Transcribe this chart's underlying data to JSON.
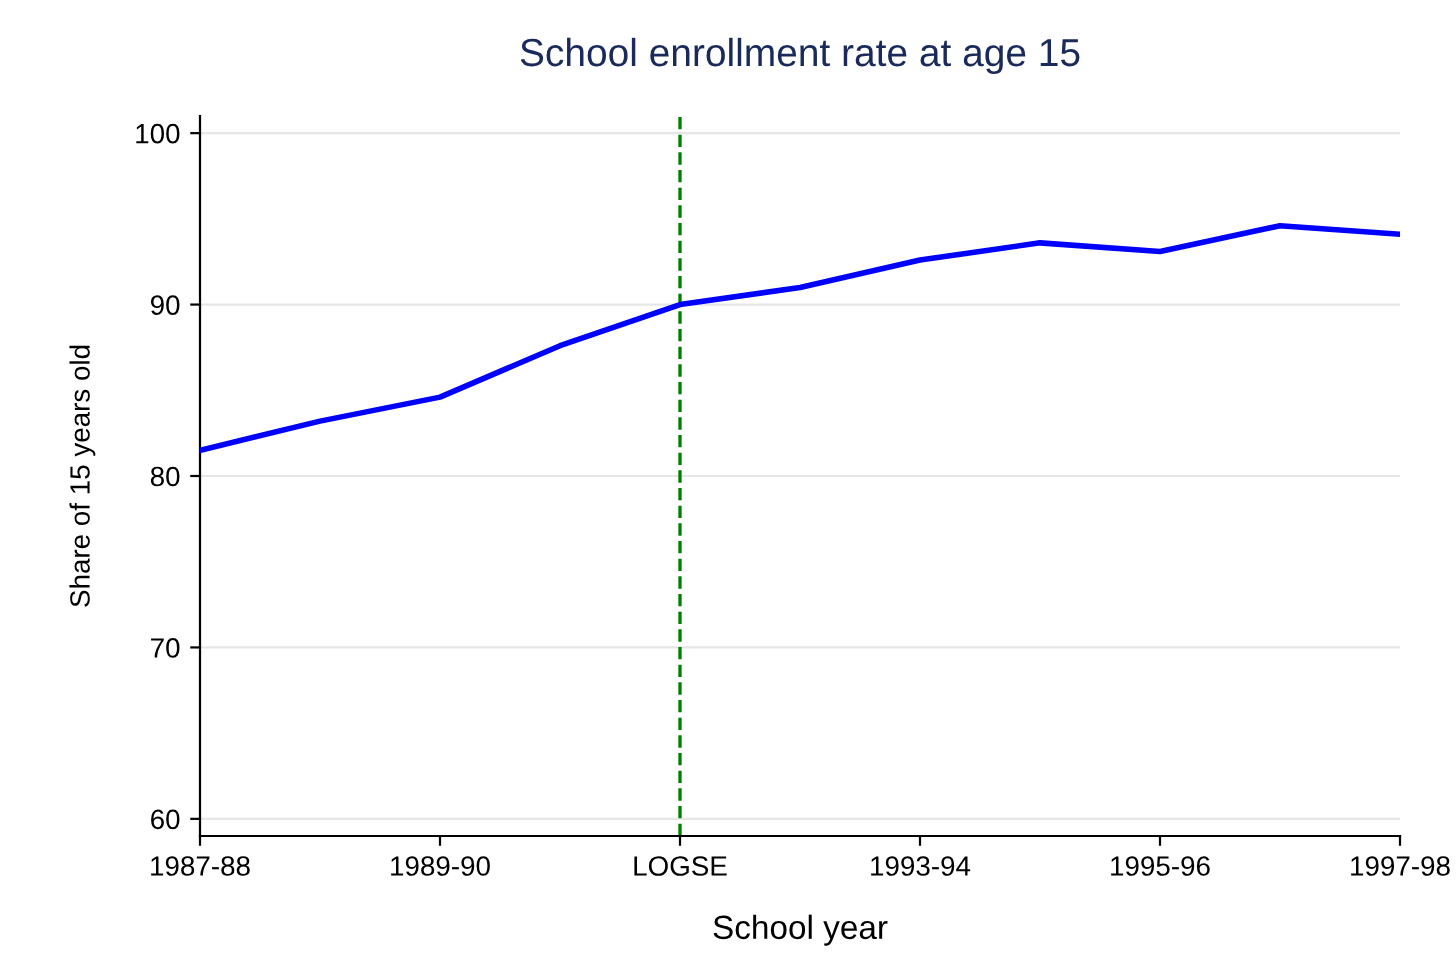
{
  "chart_data": {
    "type": "line",
    "title": "School enrollment rate at age 15",
    "xlabel": "School year",
    "ylabel": "Share of 15 years old",
    "categories": [
      "1987-88",
      null,
      "1989-90",
      null,
      "LOGSE",
      null,
      "1993-94",
      null,
      "1995-96",
      null,
      "1997-98"
    ],
    "series": [
      {
        "color": "#0000ff",
        "values": [
          81.5,
          83.2,
          84.6,
          87.6,
          90.0,
          91.0,
          92.6,
          93.6,
          93.1,
          94.6,
          94.1
        ]
      }
    ],
    "ylim": [
      59,
      101
    ],
    "yticks": [
      60,
      70,
      80,
      90,
      100
    ],
    "grid": "y",
    "line_style": "solid",
    "ref_lines": [
      {
        "axis": "x",
        "value": "LOGSE",
        "color": "#008000",
        "line_style": "dashed"
      }
    ]
  }
}
